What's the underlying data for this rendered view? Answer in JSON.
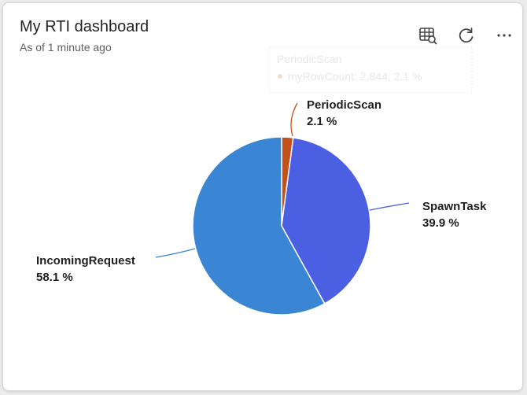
{
  "header": {
    "title": "My RTI dashboard",
    "subtitle": "As of 1 minute ago"
  },
  "toolbar": {
    "icons": [
      "table-view-icon",
      "refresh-icon",
      "more-options-icon"
    ]
  },
  "tooltip": {
    "title": "PeriodicScan",
    "row": "myRowCount: 2,844, 2.1 %"
  },
  "chart_data": {
    "type": "pie",
    "slices": [
      {
        "label": "PeriodicScan",
        "value": 2.1,
        "display": "2.1 %",
        "color": "#c4501b"
      },
      {
        "label": "SpawnTask",
        "value": 39.9,
        "display": "39.9 %",
        "color": "#4b5fe3"
      },
      {
        "label": "IncomingRequest",
        "value": 58.1,
        "display": "58.1 %",
        "color": "#3a86d4"
      }
    ]
  }
}
